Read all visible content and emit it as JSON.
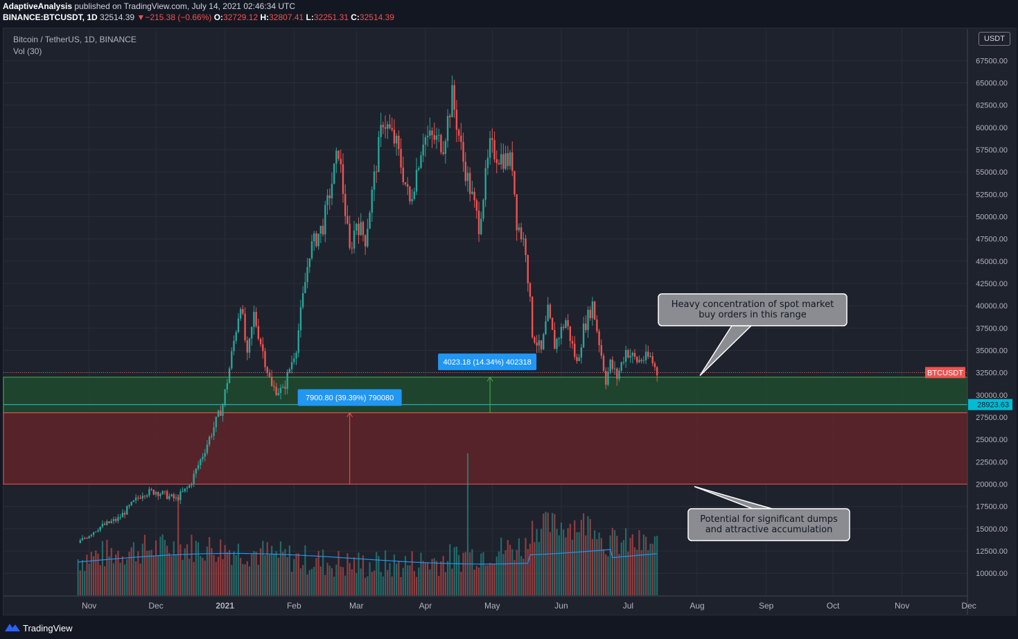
{
  "header": {
    "author": "AdaptiveAnalysis",
    "published": " published on TradingView.com, July 14, 2021 02:46:34 UTC",
    "symbol": "BINANCE:BTCUSDT, 1D ",
    "last": "32514.39",
    "change": "−215.38 (−0.66%)",
    "o_label": " O:",
    "o_val": "32729.12",
    "h_label": " H:",
    "h_val": "32807.41",
    "l_label": " L:",
    "l_val": "32251.31",
    "c_label": " C:",
    "c_val": "32514.39"
  },
  "legend": {
    "title": "Bitcoin / TetherUS, 1D, BINANCE",
    "volume": "Vol (30)"
  },
  "currency_button": "USDT",
  "footer": {
    "brand": "TradingView"
  },
  "colors": {
    "up": "#26a69a",
    "down": "#ef5350",
    "ma": "#2196f3",
    "green_zone": "#1f4a2e",
    "red_zone": "#5b2429"
  },
  "chart_data": {
    "type": "candlestick",
    "title": "Bitcoin / TetherUS, 1D, BINANCE",
    "x_ticks": [
      "Nov",
      "Dec",
      "2021",
      "Feb",
      "Mar",
      "Apr",
      "May",
      "Jun",
      "Jul",
      "Aug",
      "Sep",
      "Oct",
      "Nov",
      "Dec"
    ],
    "y_ticks": [
      "67500.00",
      "65000.00",
      "62500.00",
      "60000.00",
      "57500.00",
      "55000.00",
      "52500.00",
      "50000.00",
      "47500.00",
      "45000.00",
      "42500.00",
      "40000.00",
      "37500.00",
      "35000.00",
      "32500.00",
      "30000.00",
      "27500.00",
      "25000.00",
      "22500.00",
      "20000.00",
      "17500.00",
      "15000.00",
      "12500.00",
      "10000.00"
    ],
    "ylim": [
      8000,
      70000
    ],
    "path": [
      [
        "2020-10-27",
        13400
      ],
      [
        "2020-11-05",
        15100
      ],
      [
        "2020-11-14",
        16100
      ],
      [
        "2020-11-25",
        19000
      ],
      [
        "2020-12-01",
        19200
      ],
      [
        "2020-12-10",
        18300
      ],
      [
        "2020-12-16",
        19800
      ],
      [
        "2020-12-22",
        23300
      ],
      [
        "2020-12-31",
        28900
      ],
      [
        "2021-01-03",
        33000
      ],
      [
        "2021-01-08",
        40500
      ],
      [
        "2021-01-11",
        34000
      ],
      [
        "2021-01-14",
        39000
      ],
      [
        "2021-01-22",
        30800
      ],
      [
        "2021-01-27",
        30400
      ],
      [
        "2021-02-02",
        35500
      ],
      [
        "2021-02-08",
        46200
      ],
      [
        "2021-02-14",
        49000
      ],
      [
        "2021-02-21",
        57500
      ],
      [
        "2021-02-26",
        46000
      ],
      [
        "2021-03-01",
        49500
      ],
      [
        "2021-03-05",
        47500
      ],
      [
        "2021-03-10",
        56000
      ],
      [
        "2021-03-13",
        61000
      ],
      [
        "2021-03-19",
        58000
      ],
      [
        "2021-03-25",
        51500
      ],
      [
        "2021-03-31",
        58900
      ],
      [
        "2021-04-05",
        58700
      ],
      [
        "2021-04-09",
        58200
      ],
      [
        "2021-04-13",
        63500
      ],
      [
        "2021-04-18",
        56200
      ],
      [
        "2021-04-25",
        49100
      ],
      [
        "2021-04-30",
        57700
      ],
      [
        "2021-05-03",
        57000
      ],
      [
        "2021-05-10",
        56000
      ],
      [
        "2021-05-12",
        49500
      ],
      [
        "2021-05-16",
        46500
      ],
      [
        "2021-05-19",
        37000
      ],
      [
        "2021-05-23",
        34800
      ],
      [
        "2021-05-26",
        39300
      ],
      [
        "2021-05-29",
        35600
      ],
      [
        "2021-06-03",
        38400
      ],
      [
        "2021-06-08",
        33500
      ],
      [
        "2021-06-11",
        37400
      ],
      [
        "2021-06-15",
        40200
      ],
      [
        "2021-06-21",
        31700
      ],
      [
        "2021-06-23",
        33500
      ],
      [
        "2021-06-26",
        32000
      ],
      [
        "2021-06-30",
        35000
      ],
      [
        "2021-07-05",
        33800
      ],
      [
        "2021-07-07",
        34000
      ],
      [
        "2021-07-11",
        34200
      ],
      [
        "2021-07-14",
        32514
      ]
    ],
    "last_price": "32514.39",
    "symbol_tag": "BTCUSDT",
    "level_tag": "28923.63",
    "zones": [
      {
        "from": 28000,
        "to": 32000,
        "color": "green"
      },
      {
        "from": 20000,
        "to": 28000,
        "color": "red"
      }
    ],
    "levels": [
      28923.63,
      32514.39
    ],
    "measures": [
      {
        "label": "7900.80 (39.39%) 790080",
        "date": "2021-02-26",
        "from": 20000,
        "to": 28000
      },
      {
        "label": "4023.18 (14.34%) 402318",
        "date": "2021-04-30",
        "from": 28000,
        "to": 32000
      }
    ],
    "callouts": [
      {
        "lines": [
          "Heavy concentration of spot market",
          "buy orders in this range"
        ]
      },
      {
        "lines": [
          "Potential for significant dumps",
          "and attractive accumulation"
        ]
      }
    ],
    "volume": {
      "label": "Vol (30)"
    }
  }
}
